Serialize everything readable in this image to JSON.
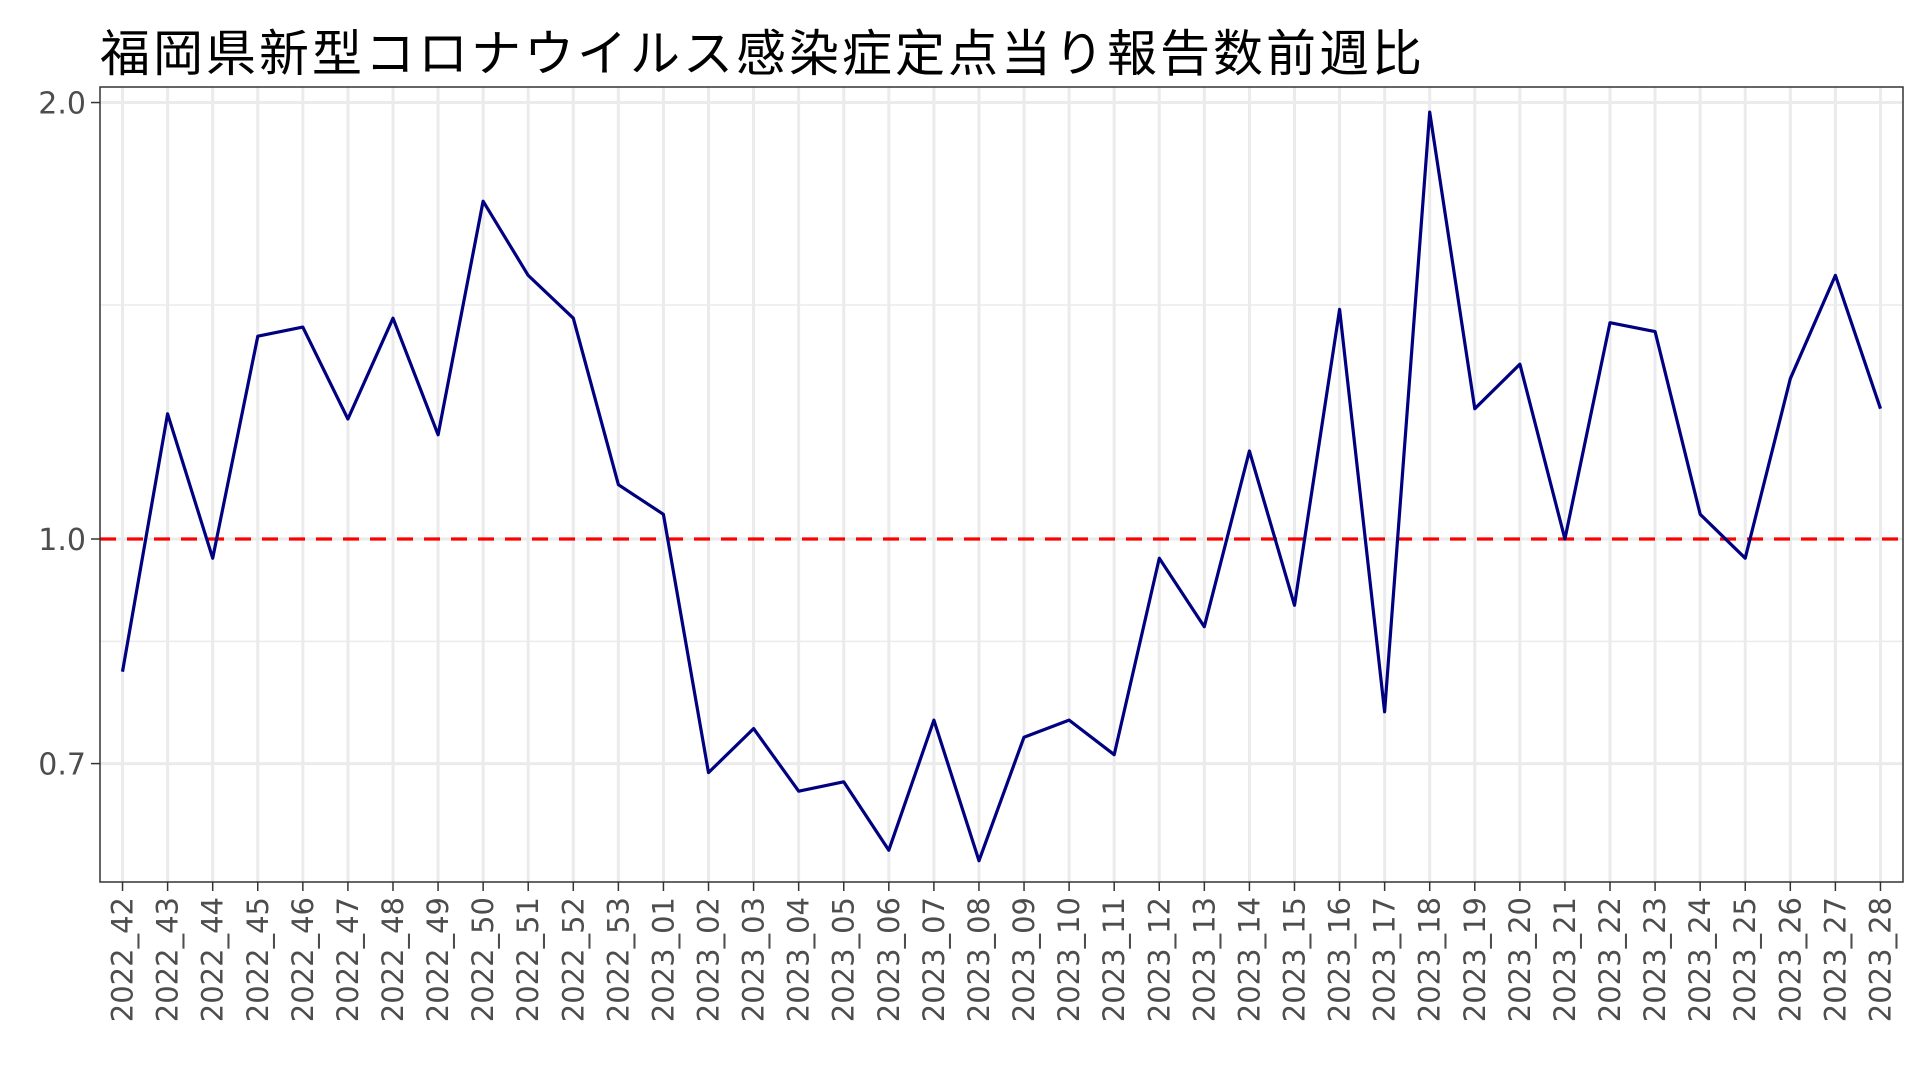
{
  "chart_data": {
    "type": "line",
    "title": "福岡県新型コロナウイルス感染症定点当り報告数前週比",
    "xlabel": "",
    "ylabel": "",
    "scale": "log",
    "ylim": [
      0.58,
      2.05
    ],
    "y_ticks": [
      0.7,
      1.0,
      2.0
    ],
    "y_tick_labels": [
      "0.7",
      "1.0",
      "2.0"
    ],
    "y_minor_grid": [
      0.85,
      1.45
    ],
    "grid": true,
    "reference_line": {
      "y": 1.0,
      "color": "#ff0000",
      "style": "dashed"
    },
    "line_color": "#000080",
    "categories": [
      "2022_42",
      "2022_43",
      "2022_44",
      "2022_45",
      "2022_46",
      "2022_47",
      "2022_48",
      "2022_49",
      "2022_50",
      "2022_51",
      "2022_52",
      "2022_53",
      "2023_01",
      "2023_02",
      "2023_03",
      "2023_04",
      "2023_05",
      "2023_06",
      "2023_07",
      "2023_08",
      "2023_09",
      "2023_10",
      "2023_11",
      "2023_12",
      "2023_13",
      "2023_14",
      "2023_15",
      "2023_16",
      "2023_17",
      "2023_18",
      "2023_19",
      "2023_20",
      "2023_21",
      "2023_22",
      "2023_23",
      "2023_24",
      "2023_25",
      "2023_26",
      "2023_27",
      "2023_28"
    ],
    "series": [
      {
        "values": [
          0.81,
          1.22,
          0.97,
          1.38,
          1.4,
          1.21,
          1.42,
          1.18,
          1.71,
          1.52,
          1.42,
          1.09,
          1.04,
          0.69,
          0.74,
          0.67,
          0.68,
          0.61,
          0.75,
          0.6,
          0.73,
          0.75,
          0.71,
          0.97,
          0.87,
          1.15,
          0.9,
          1.44,
          0.76,
          1.97,
          1.23,
          1.32,
          1.0,
          1.41,
          1.39,
          1.04,
          0.97,
          1.29,
          1.52,
          1.23
        ]
      }
    ]
  }
}
